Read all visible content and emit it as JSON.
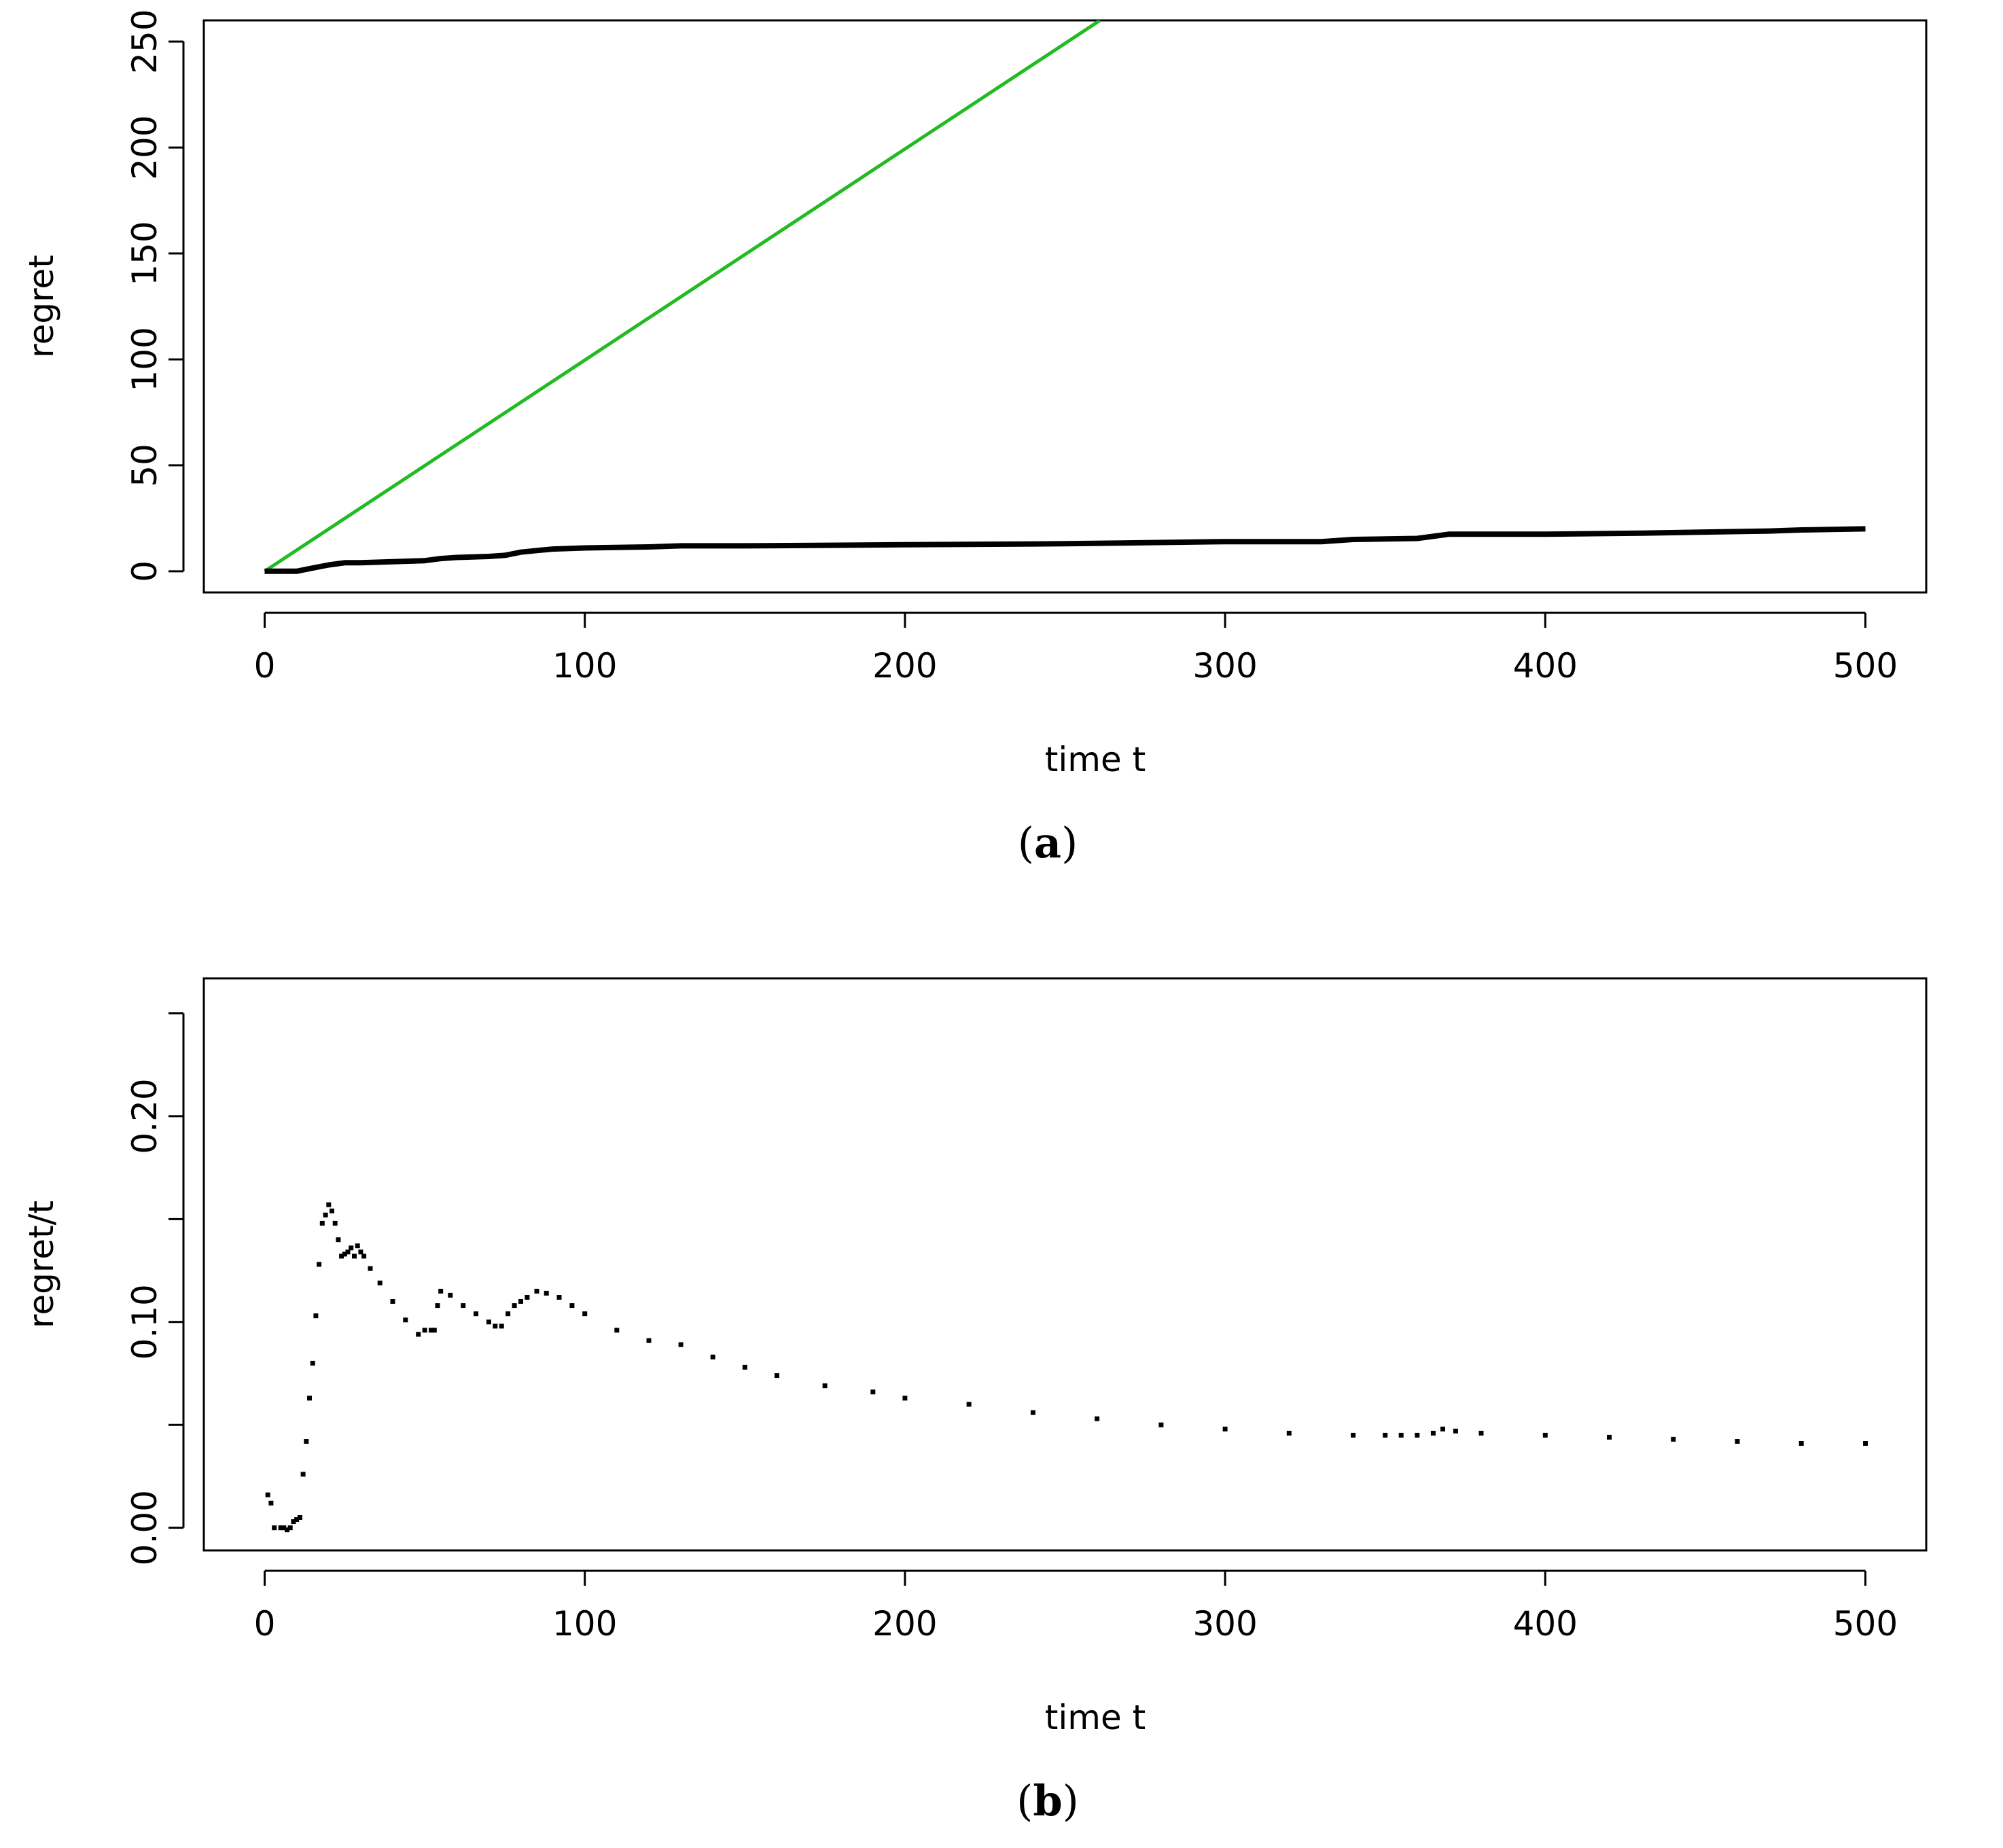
{
  "chart_data": [
    {
      "type": "line",
      "panel_label": "a",
      "xlabel": "time t",
      "ylabel": "regret",
      "xlim": [
        -19,
        519
      ],
      "ylim": [
        -10,
        260
      ],
      "xticks": [
        0,
        100,
        200,
        300,
        400,
        500
      ],
      "yticks": [
        0,
        50,
        100,
        150,
        200,
        250
      ],
      "series": [
        {
          "color": "#22bb22",
          "x": [
            0,
            260.9
          ],
          "y": [
            0,
            260
          ]
        },
        {
          "color": "#000000",
          "x": [
            0,
            5,
            10,
            15,
            20,
            25,
            30,
            40,
            50,
            55,
            60,
            70,
            75,
            80,
            85,
            90,
            100,
            120,
            130,
            150,
            200,
            250,
            300,
            330,
            340,
            360,
            365,
            370,
            400,
            430,
            450,
            470,
            480,
            500
          ],
          "y": [
            0,
            0,
            0,
            1.5,
            3,
            4,
            4,
            4.5,
            5,
            6,
            6.5,
            7,
            7.5,
            9,
            9.8,
            10.5,
            11,
            11.5,
            12,
            12,
            12.5,
            13,
            14,
            14,
            15,
            15.5,
            16.5,
            17.5,
            17.5,
            18,
            18.5,
            19,
            19.5,
            20
          ]
        }
      ]
    },
    {
      "type": "scatter",
      "panel_label": "b",
      "xlabel": "time t",
      "ylabel": "regret/t",
      "xlim": [
        -19,
        519
      ],
      "ylim": [
        -0.011,
        0.267
      ],
      "xticks": [
        0,
        100,
        200,
        300,
        400,
        500
      ],
      "yticks": [
        0.0,
        0.05,
        0.1,
        0.15,
        0.2,
        0.25
      ],
      "ytick_labels": [
        "0.00",
        "",
        "0.10",
        "",
        "0.20",
        ""
      ],
      "series": [
        {
          "color": "#000000",
          "x": [
            1,
            2,
            3,
            5,
            6,
            7,
            8,
            9,
            10,
            11,
            12,
            13,
            14,
            15,
            16,
            17,
            18,
            19,
            20,
            21,
            22,
            23,
            24,
            25,
            26,
            27,
            28,
            29,
            30,
            31,
            33,
            36,
            40,
            44,
            48,
            50,
            52,
            53,
            54,
            55,
            58,
            62,
            66,
            70,
            72,
            74,
            76,
            78,
            80,
            82,
            85,
            88,
            92,
            96,
            100,
            110,
            120,
            130,
            140,
            150,
            160,
            175,
            190,
            200,
            220,
            240,
            260,
            280,
            300,
            320,
            340,
            350,
            355,
            360,
            365,
            368,
            372,
            380,
            400,
            420,
            440,
            460,
            480,
            500
          ],
          "y": [
            0.016,
            0.012,
            0.0,
            0.0,
            0.0,
            -0.001,
            0.0,
            0.003,
            0.004,
            0.005,
            0.026,
            0.042,
            0.063,
            0.08,
            0.103,
            0.128,
            0.148,
            0.152,
            0.157,
            0.154,
            0.148,
            0.14,
            0.132,
            0.133,
            0.134,
            0.136,
            0.132,
            0.137,
            0.134,
            0.132,
            0.126,
            0.119,
            0.11,
            0.101,
            0.094,
            0.096,
            0.096,
            0.096,
            0.108,
            0.115,
            0.113,
            0.108,
            0.104,
            0.1,
            0.098,
            0.098,
            0.104,
            0.108,
            0.11,
            0.112,
            0.115,
            0.114,
            0.112,
            0.108,
            0.104,
            0.096,
            0.091,
            0.089,
            0.083,
            0.078,
            0.074,
            0.069,
            0.066,
            0.063,
            0.06,
            0.056,
            0.053,
            0.05,
            0.048,
            0.046,
            0.045,
            0.045,
            0.045,
            0.045,
            0.046,
            0.048,
            0.047,
            0.046,
            0.045,
            0.044,
            0.043,
            0.042,
            0.041,
            0.041
          ]
        }
      ]
    }
  ]
}
